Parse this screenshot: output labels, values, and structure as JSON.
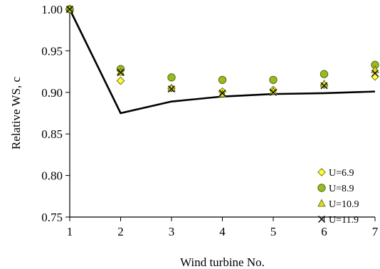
{
  "chart_data": {
    "type": "scatter",
    "xlabel": "Wind turbine No.",
    "ylabel": "Relative WS,  c",
    "xlim": [
      1,
      7
    ],
    "ylim": [
      0.75,
      1.0
    ],
    "x_ticks": [
      1,
      2,
      3,
      4,
      5,
      6,
      7
    ],
    "y_ticks": [
      0.75,
      0.8,
      0.85,
      0.9,
      0.95,
      1.0
    ],
    "y_tick_labels": [
      "0.75",
      "0.80",
      "0.85",
      "0.90",
      "0.95",
      "1.00"
    ],
    "grid": false,
    "legend_position": "lower-right",
    "reference_line": {
      "x": [
        1,
        2,
        3,
        4,
        5,
        6,
        7
      ],
      "y": [
        1.0,
        0.875,
        0.889,
        0.895,
        0.898,
        0.899,
        0.901
      ],
      "color": "#000000"
    },
    "series": [
      {
        "name": "U=6.9",
        "marker": "diamond",
        "fill": "#ffff33",
        "x": [
          1,
          2,
          3,
          4,
          5,
          6,
          7
        ],
        "y": [
          1.0,
          0.914,
          0.905,
          0.901,
          0.903,
          0.909,
          0.919
        ]
      },
      {
        "name": "U=8.9",
        "marker": "circle",
        "fill": "#99bb22",
        "x": [
          1,
          2,
          3,
          4,
          5,
          6,
          7
        ],
        "y": [
          1.0,
          0.928,
          0.918,
          0.915,
          0.915,
          0.922,
          0.933
        ]
      },
      {
        "name": "U=10.9",
        "marker": "triangle",
        "fill": "#dddd22",
        "x": [
          1,
          2,
          3,
          4,
          5,
          6,
          7
        ],
        "y": [
          1.0,
          0.924,
          0.905,
          0.898,
          0.901,
          0.91,
          0.927
        ]
      },
      {
        "name": "U=11.9",
        "marker": "x",
        "fill": "#000000",
        "x": [
          1,
          2,
          3,
          4,
          5,
          6,
          7
        ],
        "y": [
          1.0,
          0.924,
          0.904,
          0.899,
          0.9,
          0.908,
          0.923
        ]
      }
    ]
  }
}
